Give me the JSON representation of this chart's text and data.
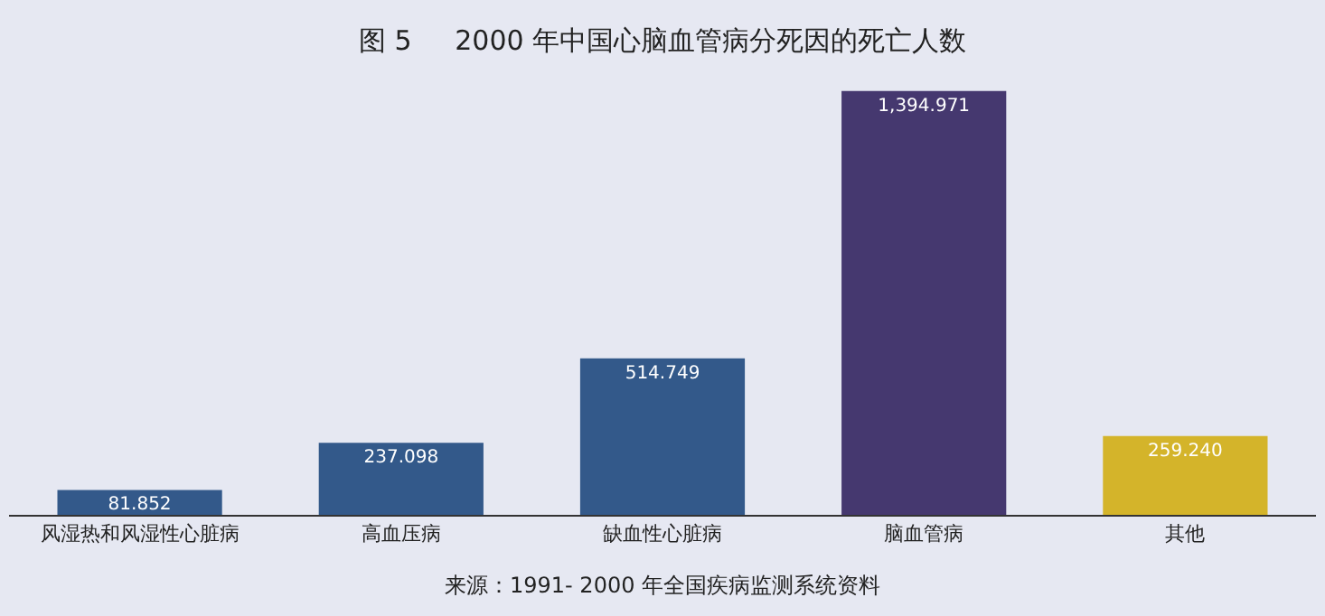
{
  "chart_data": {
    "type": "bar",
    "title": "图 5     2000 年中国心脑血管病分死因的死亡人数",
    "categories": [
      "风湿热和风湿性心脏病",
      "高血压病",
      "缺血性心脏病",
      "脑血管病",
      "其他"
    ],
    "values": [
      81.852,
      237.098,
      514.749,
      1394.971,
      259.24
    ],
    "value_labels": [
      "81.852",
      "237.098",
      "514.749",
      "1,394.971",
      "259.240"
    ],
    "colors": [
      "#33598a",
      "#33598a",
      "#33598a",
      "#45386f",
      "#d4b42a"
    ],
    "tick_labels": "x",
    "annotations": [
      "来源：1991- 2000 年全国疾病监测系统资料"
    ]
  }
}
